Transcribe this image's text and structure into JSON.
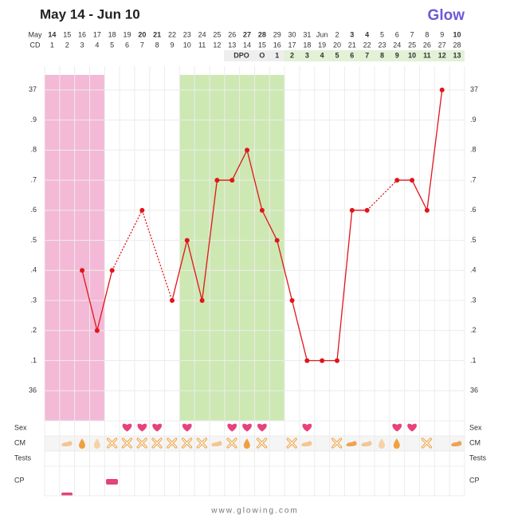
{
  "title": "May 14 - Jun 10",
  "logo": "Glow",
  "footer": "www.glowing.com",
  "chart_data": {
    "type": "line",
    "color": "#e0151b",
    "date_label": "May",
    "cd_label": "CD",
    "dpo_label": "DPO",
    "dates": [
      14,
      15,
      16,
      17,
      18,
      19,
      20,
      21,
      22,
      23,
      24,
      25,
      26,
      27,
      28,
      29,
      30,
      31,
      "Jun",
      2,
      3,
      4,
      5,
      6,
      7,
      8,
      9,
      10
    ],
    "weekend": [
      1,
      7,
      8,
      14,
      15,
      21,
      22,
      28
    ],
    "categories": [
      1,
      2,
      3,
      4,
      5,
      6,
      7,
      8,
      9,
      10,
      11,
      12,
      13,
      14,
      15,
      16,
      17,
      18,
      19,
      20,
      21,
      22,
      23,
      24,
      25,
      26,
      27,
      28
    ],
    "dpo": [
      null,
      null,
      null,
      null,
      null,
      null,
      null,
      null,
      null,
      null,
      null,
      null,
      null,
      null,
      "O",
      1,
      2,
      3,
      4,
      5,
      6,
      7,
      8,
      9,
      10,
      11,
      12,
      13
    ],
    "values": [
      null,
      null,
      36.4,
      36.2,
      36.4,
      null,
      36.6,
      null,
      36.3,
      36.5,
      36.3,
      36.7,
      36.7,
      36.8,
      36.6,
      36.5,
      36.3,
      36.1,
      36.1,
      36.1,
      36.6,
      36.6,
      null,
      36.7,
      36.7,
      36.6,
      37.0,
      null
    ],
    "period": [
      1,
      4
    ],
    "fertile": [
      10,
      16
    ],
    "sex": [
      6,
      7,
      8,
      10,
      13,
      14,
      15,
      18,
      24,
      25
    ],
    "rows": [
      "Sex",
      "CM",
      "Tests",
      "CP"
    ],
    "ylim": [
      35.9,
      37.05
    ],
    "yticks": [
      37,
      {
        "value": 36.9,
        "label": ".9"
      },
      {
        "value": 36.8,
        "label": ".8"
      },
      {
        "value": 36.7,
        "label": ".7"
      },
      {
        "value": 36.6,
        "label": ".6"
      },
      {
        "value": 36.5,
        "label": ".5"
      },
      {
        "value": 36.4,
        "label": ".4"
      },
      {
        "value": 36.3,
        "label": ".3"
      },
      {
        "value": 36.2,
        "label": ".2"
      },
      {
        "value": 36.1,
        "label": ".1"
      },
      36
    ],
    "grid": true
  }
}
